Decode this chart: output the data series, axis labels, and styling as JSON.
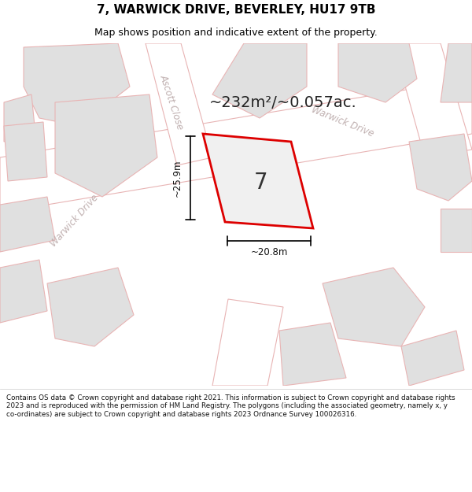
{
  "title": "7, WARWICK DRIVE, BEVERLEY, HU17 9TB",
  "subtitle": "Map shows position and indicative extent of the property.",
  "area_text": "~232m²/~0.057ac.",
  "plot_number": "7",
  "dim_width": "~20.8m",
  "dim_height": "~25.9m",
  "map_bg": "#f0f0f0",
  "road_fill": "#ffffff",
  "road_stroke": "#e8b4b4",
  "building_fill": "#e0e0e0",
  "building_stroke": "#e8b4b4",
  "plot_fill": "#f0f0f0",
  "plot_stroke": "#dd0000",
  "road_label_color": "#c0b0b0",
  "footer_text": "Contains OS data © Crown copyright and database right 2021. This information is subject to Crown copyright and database rights 2023 and is reproduced with the permission of HM Land Registry. The polygons (including the associated geometry, namely x, y co-ordinates) are subject to Crown copyright and database rights 2023 Ordnance Survey 100026316."
}
